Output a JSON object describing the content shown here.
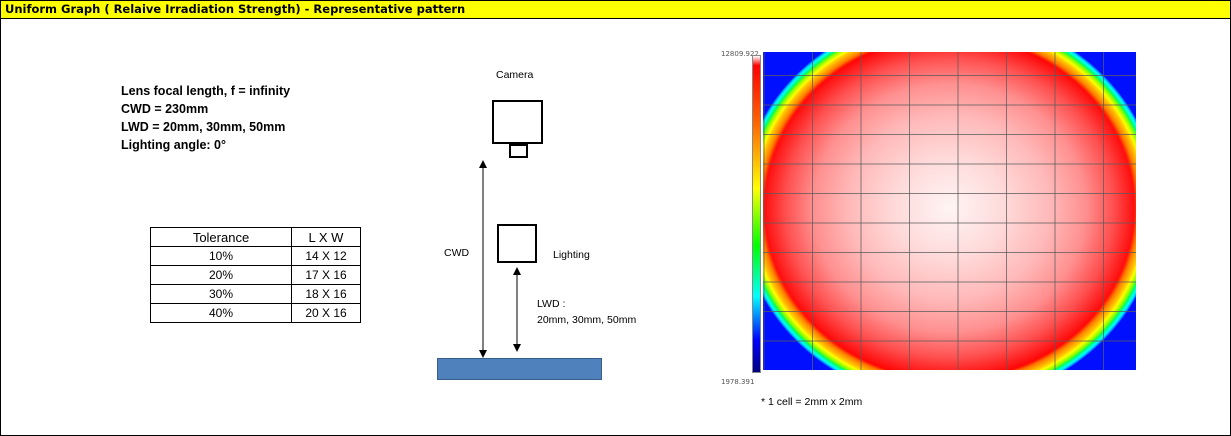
{
  "title": "Uniform Graph ( Relaive Irradiation Strength) - Representative pattern",
  "specs": {
    "focal_length": "Lens focal  length,  f = infinity",
    "cwd": "CWD = 230mm",
    "lwd": "LWD = 20mm, 30mm, 50mm",
    "lighting_angle": "Lighting angle: 0°"
  },
  "tolerance_table": {
    "headers": [
      "Tolerance",
      "L X W"
    ],
    "rows": [
      [
        "10%",
        "14 X 12"
      ],
      [
        "20%",
        "17 X 16"
      ],
      [
        "30%",
        "18 X 16"
      ],
      [
        "40%",
        "20 X 16"
      ]
    ]
  },
  "diagram": {
    "camera_label": "Camera",
    "cwd_label": "CWD",
    "lighting_label": "Lighting",
    "lwd_label": "LWD :",
    "lwd_values": "20mm, 30mm, 50mm"
  },
  "colorbar": {
    "max": "12809.922",
    "min": "1978.391"
  },
  "note": "* 1 cell = 2mm x 2mm",
  "colors": {
    "title_bg": "#ffff00",
    "work_plate": "#4f81bd"
  }
}
